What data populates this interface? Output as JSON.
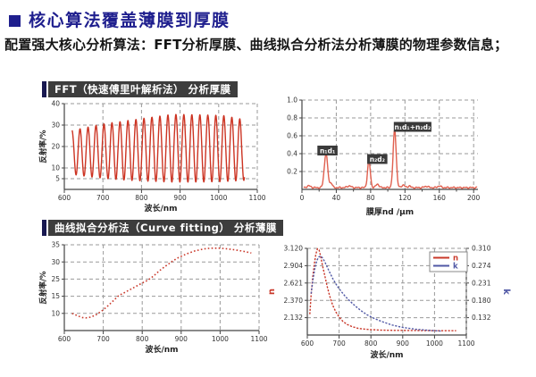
{
  "title": "核心算法覆盖薄膜到厚膜",
  "intro": "配置强大核心分析算法：FFT分析厚膜、曲线拟合分析法分析薄膜的物理参数信息；",
  "sections": [
    {
      "header": "FFT（快速傅里叶解析法） 分析厚膜"
    },
    {
      "header": "曲线拟合分析法（Curve fitting） 分析薄膜"
    }
  ],
  "colors": {
    "title_navy": "#1f1f8e",
    "accent_bar": "#181850",
    "header_bg": "#3d3d3d",
    "red": "#c9382a",
    "salmon": "#e0604f",
    "blue": "#5058a5",
    "grid": "#9a9a9a",
    "axis": "#444444",
    "annotation_bg": "#3a3a3a"
  },
  "chart_data": [
    {
      "id": "fft-spectrum",
      "type": "line",
      "title": "",
      "xlabel": "波长/nm",
      "ylabel": "反射率/%",
      "xlim": [
        600,
        1100
      ],
      "x_ticks": [
        600,
        700,
        800,
        900,
        1000,
        1100
      ],
      "y_ticks": [
        {
          "label": "40",
          "v": 40,
          "f": 0.0
        },
        {
          "label": "30",
          "v": 30,
          "f": 0.25
        },
        {
          "label": "20",
          "v": 20,
          "f": 0.5
        },
        {
          "label": "10",
          "v": 10,
          "f": 0.75
        },
        {
          "label": "5",
          "v": 5,
          "f": 0.875
        }
      ],
      "grid": true,
      "series": [
        {
          "name": "reflectance-fringes",
          "color": "#cc3322",
          "style": "solid",
          "waveform": {
            "x_start": 620,
            "x_end": 1067,
            "period_nm": 20.7,
            "envelope_max": [
              [
                620,
                27.5
              ],
              [
                660,
                29
              ],
              [
                700,
                30.5
              ],
              [
                760,
                32
              ],
              [
                820,
                33.5
              ],
              [
                880,
                35
              ],
              [
                950,
                34.8
              ],
              [
                1010,
                34.5
              ],
              [
                1067,
                32.5
              ]
            ],
            "envelope_min": [
              [
                620,
                7
              ],
              [
                660,
                6
              ],
              [
                700,
                5.2
              ],
              [
                760,
                4.3
              ],
              [
                820,
                3.8
              ],
              [
                880,
                3.4
              ],
              [
                950,
                3.4
              ],
              [
                1010,
                3.6
              ],
              [
                1067,
                4.2
              ]
            ]
          }
        }
      ]
    },
    {
      "id": "fft-thickness",
      "type": "line",
      "title": "",
      "xlabel": "膜厚nd /μm",
      "ylabel": "",
      "xlim": [
        0,
        205
      ],
      "x_ticks": [
        0,
        40,
        80,
        120,
        160,
        200
      ],
      "x_minor_ticks": [
        20,
        60,
        100,
        140,
        180
      ],
      "y_ticks": [
        {
          "label": "1.0",
          "v": 1.0,
          "f": 0.0
        },
        {
          "label": "0.8",
          "v": 0.8,
          "f": 0.2
        },
        {
          "label": "0.6",
          "v": 0.6,
          "f": 0.4
        },
        {
          "label": "0.4",
          "v": 0.4,
          "f": 0.6
        },
        {
          "label": "0.2",
          "v": 0.2,
          "f": 0.8
        }
      ],
      "grid": true,
      "series": [
        {
          "name": "fft-amplitude",
          "color": "#e0604f",
          "style": "solid",
          "peaks": {
            "baseline": 0.02,
            "noise": 0.009,
            "gaussians": [
              [
                28,
                0.38,
                2.8
              ],
              [
                78,
                0.3,
                2.3
              ],
              [
                108,
                0.65,
                2.5
              ],
              [
                8,
                0.02,
                3
              ],
              [
                34,
                0.05,
                2
              ],
              [
                55,
                0.02,
                3
              ],
              [
                88,
                0.04,
                2.5
              ],
              [
                118,
                0.03,
                2.5
              ],
              [
                125,
                0.02,
                2
              ],
              [
                145,
                0.015,
                3
              ],
              [
                160,
                0.02,
                2.5
              ]
            ]
          }
        }
      ],
      "annotations": [
        {
          "label": "n₁d₁",
          "x": 18,
          "v": 0.435
        },
        {
          "label": "n₂d₂",
          "x": 76,
          "v": 0.34
        },
        {
          "label": "n₁d₁+n₂d₂",
          "x": 107,
          "v": 0.7
        }
      ]
    },
    {
      "id": "curve-fit",
      "type": "line",
      "title": "",
      "xlabel": "波长/nm",
      "ylabel": "反射率/%",
      "xlim": [
        600,
        1100
      ],
      "x_ticks": [
        600,
        700,
        800,
        900,
        1000,
        1100
      ],
      "y_ticks": [
        {
          "label": "35",
          "v": 35,
          "f": 0.0
        },
        {
          "label": "30",
          "v": 30,
          "f": 0.2
        },
        {
          "label": "25",
          "v": 25,
          "f": 0.4
        },
        {
          "label": "15",
          "v": 15,
          "f": 0.6
        },
        {
          "label": "10",
          "v": 10,
          "f": 0.8
        }
      ],
      "grid": true,
      "series": [
        {
          "name": "fitted-reflectance",
          "color": "#c9382a",
          "style": "dotted",
          "points": [
            [
              620,
              10.0
            ],
            [
              632,
              9.4
            ],
            [
              645,
              8.8
            ],
            [
              655,
              8.7
            ],
            [
              668,
              8.9
            ],
            [
              680,
              9.5
            ],
            [
              695,
              10.6
            ],
            [
              710,
              12.0
            ],
            [
              725,
              13.6
            ],
            [
              740,
              15.4
            ],
            [
              755,
              17.2
            ],
            [
              770,
              19.0
            ],
            [
              785,
              20.9
            ],
            [
              800,
              22.7
            ],
            [
              815,
              24.4
            ],
            [
              830,
              26.0
            ],
            [
              845,
              27.5
            ],
            [
              860,
              28.8
            ],
            [
              875,
              30.0
            ],
            [
              890,
              31.1
            ],
            [
              905,
              31.9
            ],
            [
              920,
              32.6
            ],
            [
              935,
              33.2
            ],
            [
              950,
              33.6
            ],
            [
              965,
              33.9
            ],
            [
              980,
              34.0
            ],
            [
              1000,
              34.0
            ],
            [
              1020,
              33.8
            ],
            [
              1040,
              33.5
            ],
            [
              1060,
              33.1
            ],
            [
              1080,
              32.6
            ]
          ]
        }
      ]
    },
    {
      "id": "nk-dispersion",
      "type": "line",
      "title": "",
      "xlabel": "波长/nm",
      "ylabel_left": {
        "text": "n",
        "color": "#c9382a"
      },
      "ylabel_right": {
        "text": "k",
        "color": "#5058a5"
      },
      "xlim": [
        600,
        1100
      ],
      "x_ticks": [
        600,
        700,
        800,
        900,
        1000,
        1100
      ],
      "y_ticks": [
        {
          "label": "3.120",
          "v": 3.12,
          "f": 0.0
        },
        {
          "label": "2.904",
          "v": 2.904,
          "f": 0.2
        },
        {
          "label": "2.621",
          "v": 2.621,
          "f": 0.4
        },
        {
          "label": "2.370",
          "v": 2.37,
          "f": 0.6
        },
        {
          "label": "2.132",
          "v": 2.132,
          "f": 0.8
        }
      ],
      "y_ticks_right": [
        {
          "label": "0.310",
          "v": 0.31,
          "f": 0.0
        },
        {
          "label": "0.274",
          "v": 0.274,
          "f": 0.2
        },
        {
          "label": "0.231",
          "v": 0.231,
          "f": 0.4
        },
        {
          "label": "0.180",
          "v": 0.18,
          "f": 0.6
        },
        {
          "label": "0.132",
          "v": 0.132,
          "f": 0.8
        }
      ],
      "grid": true,
      "legend": {
        "entries": [
          {
            "label": "n",
            "color": "#c9382a"
          },
          {
            "label": "k",
            "color": "#5058a5"
          }
        ]
      },
      "series": [
        {
          "name": "n-index",
          "color": "#c9382a",
          "style": "dense-dot",
          "axis": "left",
          "points": [
            [
              608,
              2.18
            ],
            [
              612,
              2.45
            ],
            [
              617,
              2.72
            ],
            [
              622,
              2.92
            ],
            [
              627,
              3.05
            ],
            [
              632,
              3.115
            ],
            [
              637,
              3.1
            ],
            [
              642,
              3.02
            ],
            [
              648,
              2.9
            ],
            [
              655,
              2.74
            ],
            [
              662,
              2.58
            ],
            [
              670,
              2.44
            ],
            [
              680,
              2.3
            ],
            [
              690,
              2.21
            ],
            [
              700,
              2.14
            ],
            [
              712,
              2.08
            ],
            [
              725,
              2.04
            ],
            [
              740,
              2.01
            ],
            [
              760,
              1.985
            ],
            [
              780,
              1.975
            ],
            [
              800,
              1.968
            ],
            [
              830,
              1.962
            ],
            [
              870,
              1.958
            ],
            [
              920,
              1.956
            ],
            [
              980,
              1.954
            ],
            [
              1030,
              1.953
            ],
            [
              1068,
              1.953
            ]
          ]
        },
        {
          "name": "k-extinction",
          "color": "#5058a5",
          "style": "dense-dot",
          "axis": "right",
          "points": [
            [
              612,
              0.2
            ],
            [
              618,
              0.24
            ],
            [
              624,
              0.268
            ],
            [
              630,
              0.285
            ],
            [
              636,
              0.292
            ],
            [
              642,
              0.294
            ],
            [
              648,
              0.29
            ],
            [
              655,
              0.282
            ],
            [
              663,
              0.27
            ],
            [
              672,
              0.255
            ],
            [
              682,
              0.239
            ],
            [
              694,
              0.222
            ],
            [
              706,
              0.207
            ],
            [
              720,
              0.191
            ],
            [
              735,
              0.177
            ],
            [
              750,
              0.165
            ],
            [
              768,
              0.152
            ],
            [
              788,
              0.14
            ],
            [
              810,
              0.13
            ],
            [
              835,
              0.121
            ],
            [
              865,
              0.112
            ],
            [
              900,
              0.105
            ],
            [
              940,
              0.1
            ],
            [
              980,
              0.097
            ],
            [
              1020,
              0.095
            ]
          ]
        }
      ]
    }
  ]
}
